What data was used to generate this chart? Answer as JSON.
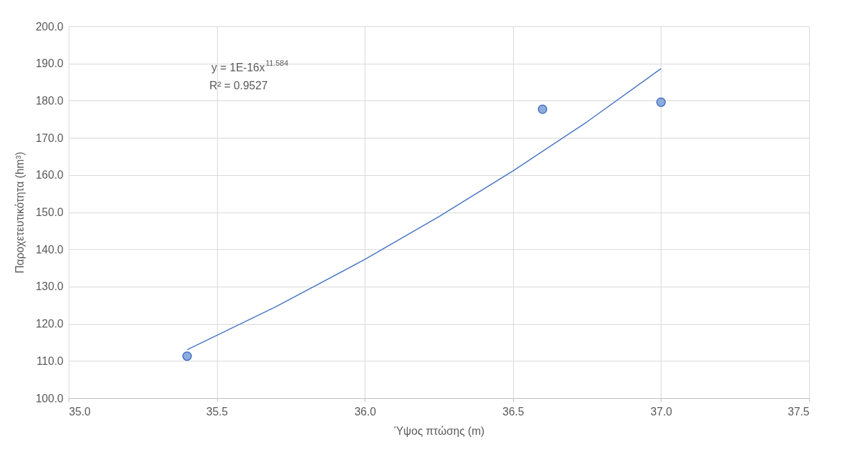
{
  "chart_data": {
    "type": "scatter",
    "xlabel": "Ύψος πτώσης (m)",
    "ylabel": "Παροχετευτικότητα (hm³)",
    "xlim": [
      35.0,
      37.5
    ],
    "ylim": [
      100.0,
      200.0
    ],
    "xticks": [
      {
        "value": 35.0,
        "label": "35.0"
      },
      {
        "value": 35.5,
        "label": "35.5"
      },
      {
        "value": 36.0,
        "label": "36.0"
      },
      {
        "value": 36.5,
        "label": "36.5"
      },
      {
        "value": 37.0,
        "label": "37.0"
      },
      {
        "value": 37.5,
        "label": "37.5"
      }
    ],
    "yticks": [
      {
        "value": 100,
        "label": "100.0"
      },
      {
        "value": 110,
        "label": "110.0"
      },
      {
        "value": 120,
        "label": "120.0"
      },
      {
        "value": 130,
        "label": "130.0"
      },
      {
        "value": 140,
        "label": "140.0"
      },
      {
        "value": 150,
        "label": "150.0"
      },
      {
        "value": 160,
        "label": "160.0"
      },
      {
        "value": 170,
        "label": "170.0"
      },
      {
        "value": 180,
        "label": "180.0"
      },
      {
        "value": 190,
        "label": "190.0"
      },
      {
        "value": 200,
        "label": "200.0"
      }
    ],
    "grid": true,
    "legend": false,
    "marker": "circle",
    "series": [
      {
        "color": "#8faadc",
        "x": [
          35.4,
          36.6,
          37.0
        ],
        "values": [
          111.3,
          177.7,
          179.6
        ]
      },
      {
        "type": "line",
        "color": "#4472c4",
        "marker": "none",
        "line_style": "solid",
        "x": [
          35.4,
          35.7,
          36.0,
          36.25,
          36.5,
          36.75,
          37.0
        ],
        "values": [
          113,
          124.6,
          137.3,
          148.8,
          161.1,
          174.3,
          188.6
        ]
      }
    ],
    "annotations": [
      "y = 1E-16x$^{11.584}$",
      "R² = 0.9527"
    ]
  }
}
